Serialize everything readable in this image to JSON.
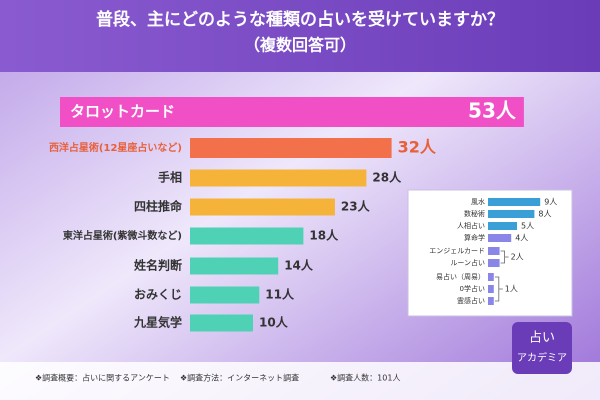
{
  "chart_data": {
    "type": "bar",
    "title": "普段、主にどのような種類の占いを受けていますか？",
    "subtitle": "（複数回答可）",
    "categories": [
      "タロットカード",
      "西洋占星術(12星座占いなど)",
      "手相",
      "四柱推命",
      "東洋占星術(紫微斗数など)",
      "姓名判断",
      "おみくじ",
      "九星気学"
    ],
    "values": [
      53,
      32,
      28,
      23,
      18,
      14,
      11,
      10
    ],
    "value_labels": [
      "53人",
      "32人",
      "28人",
      "23人",
      "18人",
      "14人",
      "11人",
      "10人"
    ],
    "colors": [
      "#f04fc6",
      "#f2704a",
      "#f5b33a",
      "#f5b33a",
      "#4fd1b5",
      "#4fd1b5",
      "#4fd1b5",
      "#4fd1b5"
    ],
    "inset": {
      "type": "bar",
      "categories": [
        "風水",
        "数秘術",
        "人相占い",
        "算命学",
        "エンジェルカード",
        "ルーン占い",
        "易占い（周易）",
        "0学占い",
        "霊感占い"
      ],
      "values": [
        9,
        8,
        5,
        4,
        2,
        2,
        1,
        1,
        1
      ],
      "value_labels": [
        "9人",
        "8人",
        "5人",
        "4人",
        "2人",
        null,
        "1人",
        null,
        null
      ],
      "colors": [
        "#3a9fd6",
        "#3a9fd6",
        "#3a9fd6",
        "#8a86e8",
        "#8a86e8",
        "#8a86e8",
        "#8a86e8",
        "#8a86e8",
        "#8a86e8"
      ]
    },
    "footnotes": [
      "❖調査概要：占いに関するアンケート",
      "❖調査方法：インターネット調査",
      "❖調査人数：101人"
    ],
    "logo": [
      "占い",
      "アカデミア"
    ]
  }
}
